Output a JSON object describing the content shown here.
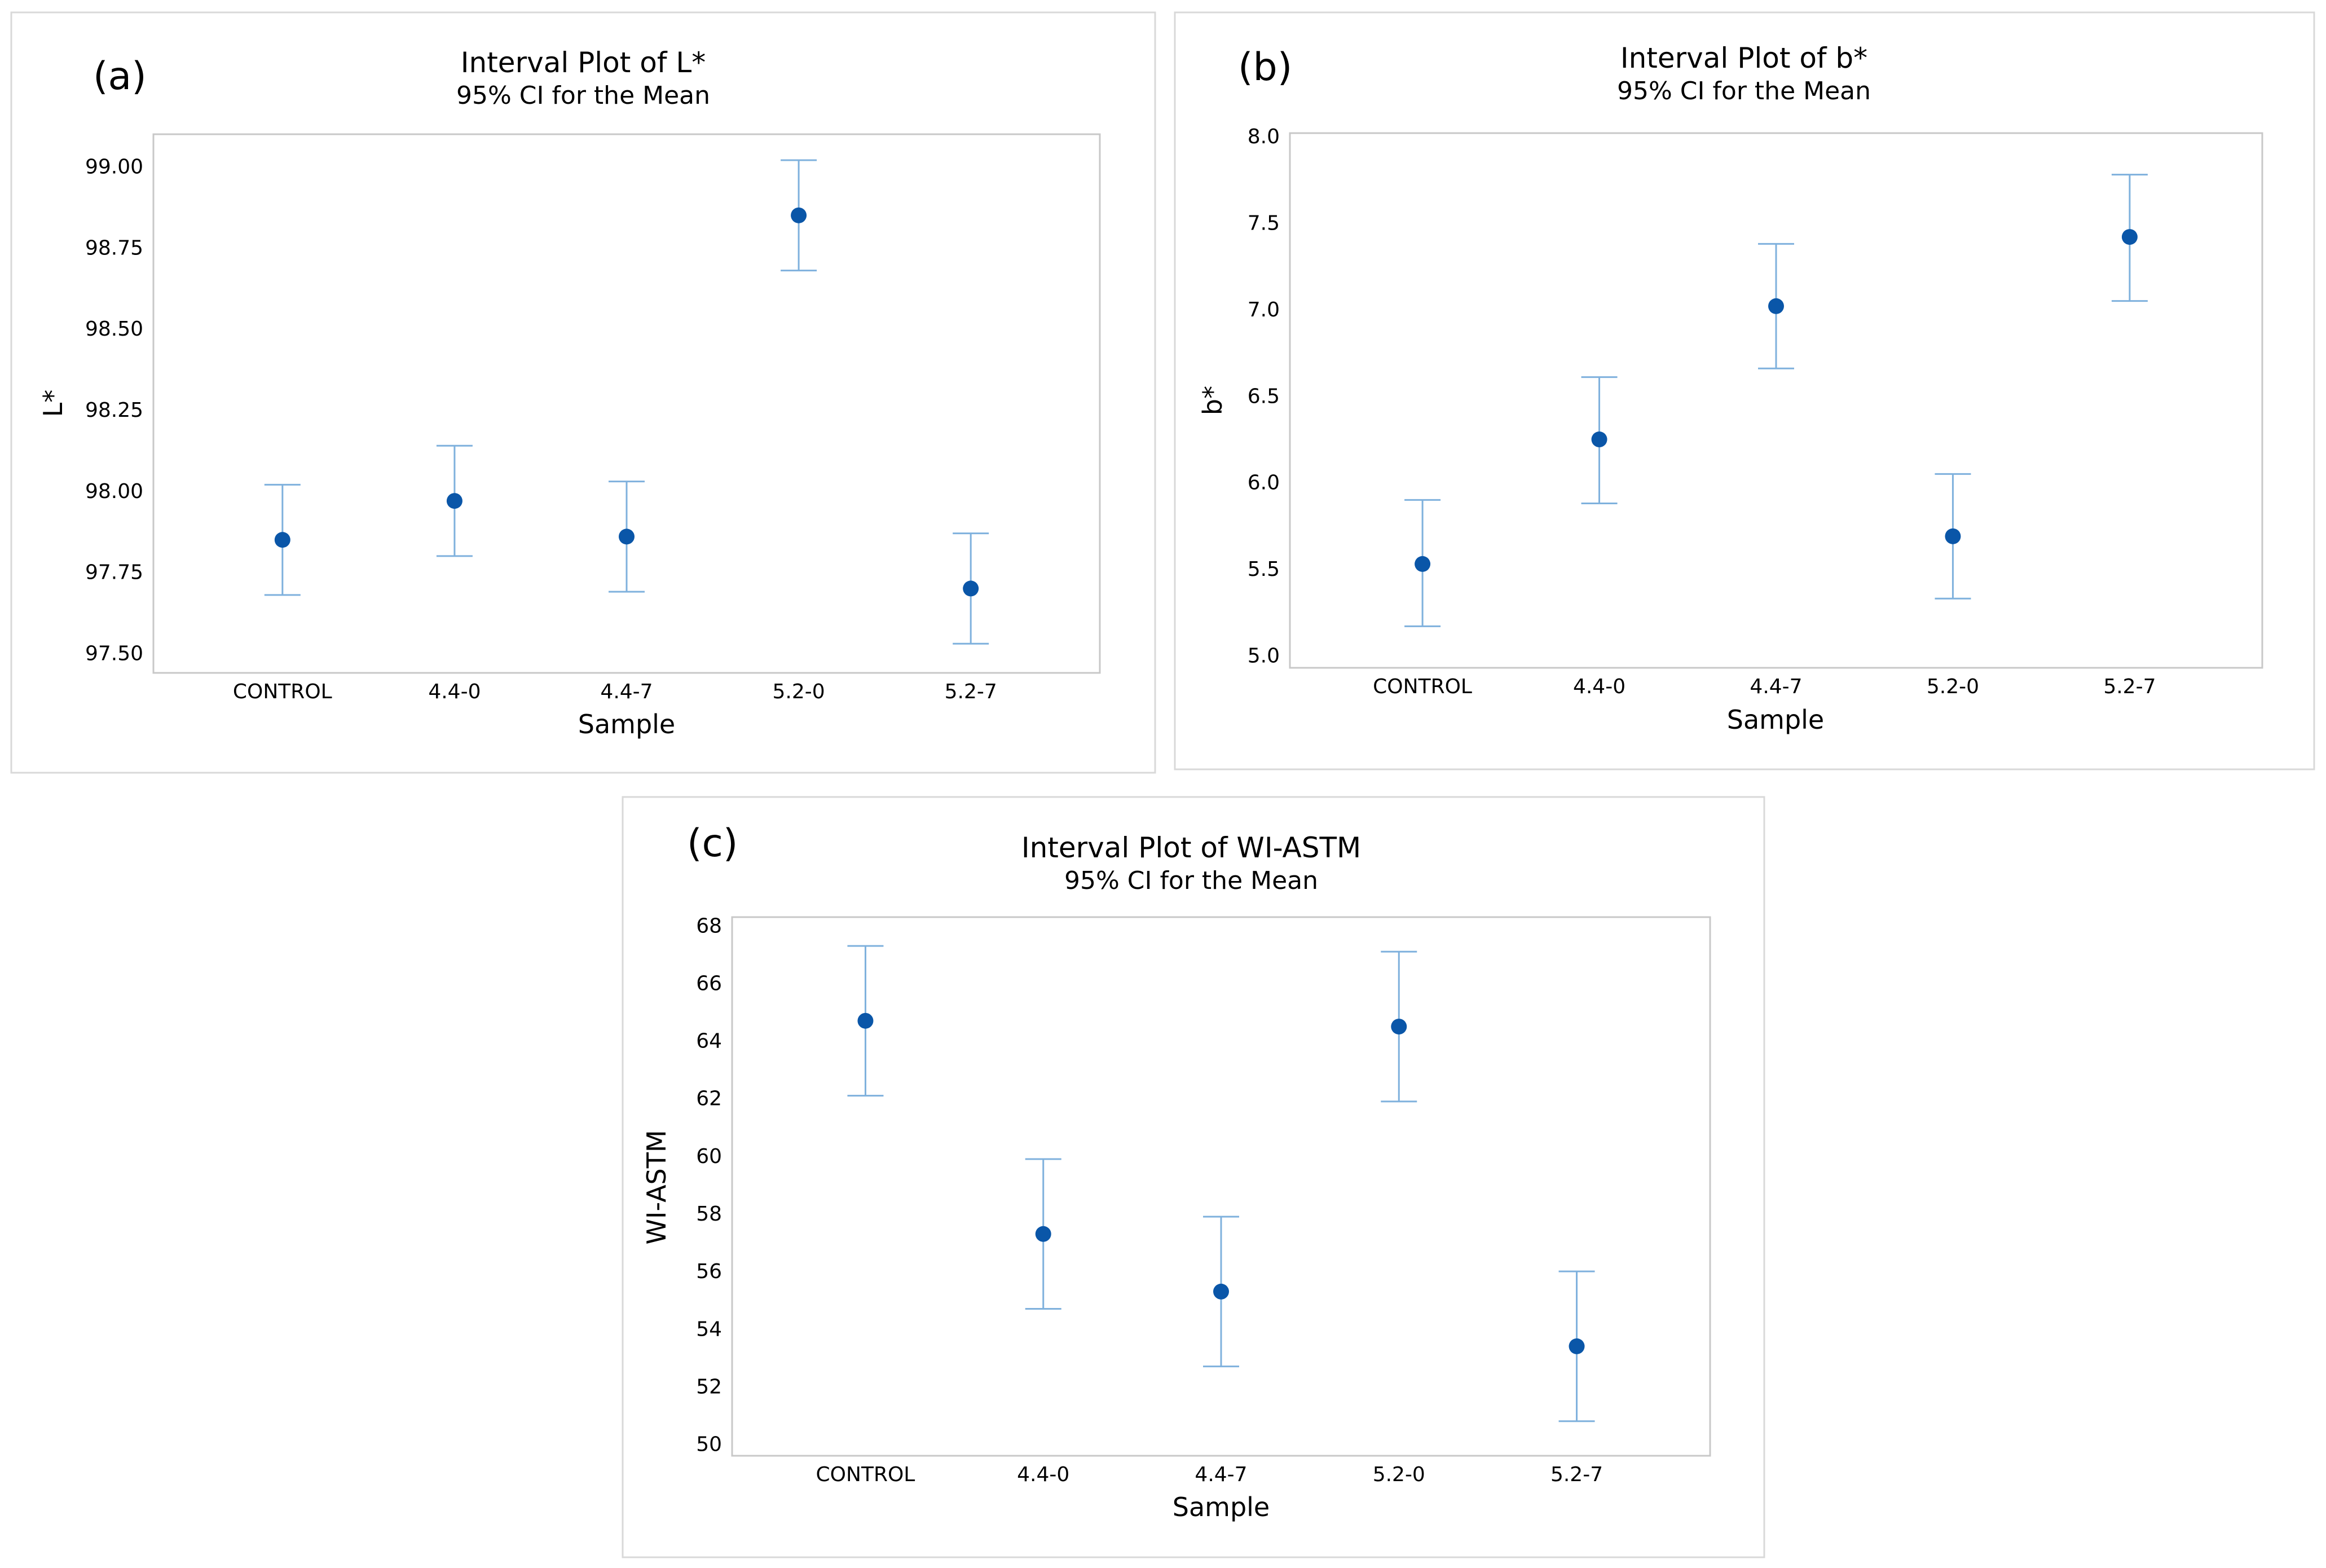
{
  "chart_data": [
    {
      "panel": "(a)",
      "type": "interval",
      "title": "Interval Plot of L*",
      "subtitle": "95% CI for the Mean",
      "xlabel": "Sample",
      "ylabel": "L*",
      "categories": [
        "CONTROL",
        "4.4-0",
        "4.4-7",
        "5.2-0",
        "5.2-7"
      ],
      "means": [
        97.85,
        97.97,
        97.86,
        98.85,
        97.7
      ],
      "lower": [
        97.68,
        97.8,
        97.69,
        98.68,
        97.53
      ],
      "upper": [
        98.02,
        98.14,
        98.03,
        99.02,
        97.87
      ],
      "yticks": [
        97.5,
        97.75,
        98.0,
        98.25,
        98.5,
        98.75,
        99.0
      ],
      "ytick_labels": [
        "97.50",
        "97.75",
        "98.00",
        "98.25",
        "98.50",
        "98.75",
        "99.00"
      ],
      "ylim": [
        97.44,
        99.1
      ],
      "colors": {
        "mean": "#0a56a8",
        "interval": "#7fb1dd"
      }
    },
    {
      "panel": "(b)",
      "type": "interval",
      "title": "Interval Plot of b*",
      "subtitle": "95% CI for the Mean",
      "xlabel": "Sample",
      "ylabel": "b*",
      "categories": [
        "CONTROL",
        "4.4-0",
        "4.4-7",
        "5.2-0",
        "5.2-7"
      ],
      "means": [
        5.53,
        6.25,
        7.02,
        5.69,
        7.42
      ],
      "lower": [
        5.17,
        5.88,
        6.66,
        5.33,
        7.05
      ],
      "upper": [
        5.9,
        6.61,
        7.38,
        6.05,
        7.78
      ],
      "yticks": [
        5.0,
        5.5,
        6.0,
        6.5,
        7.0,
        7.5,
        8.0
      ],
      "ytick_labels": [
        "5.0",
        "5.5",
        "6.0",
        "6.5",
        "7.0",
        "7.5",
        "8.0"
      ],
      "ylim": [
        4.93,
        8.02
      ],
      "colors": {
        "mean": "#0a56a8",
        "interval": "#7fb1dd"
      }
    },
    {
      "panel": "(c)",
      "type": "interval",
      "title": "Interval Plot of WI-ASTM",
      "subtitle": "95% CI for the Mean",
      "xlabel": "Sample",
      "ylabel": "WI-ASTM",
      "categories": [
        "CONTROL",
        "4.4-0",
        "4.4-7",
        "5.2-0",
        "5.2-7"
      ],
      "means": [
        64.7,
        57.3,
        55.3,
        64.5,
        53.4
      ],
      "lower": [
        62.1,
        54.7,
        52.7,
        61.9,
        50.8
      ],
      "upper": [
        67.3,
        59.9,
        57.9,
        67.1,
        56.0
      ],
      "yticks": [
        50,
        52,
        54,
        56,
        58,
        60,
        62,
        64,
        66,
        68
      ],
      "ytick_labels": [
        "50",
        "52",
        "54",
        "56",
        "58",
        "60",
        "62",
        "64",
        "66",
        "68"
      ],
      "ylim": [
        49.6,
        68.3
      ],
      "colors": {
        "mean": "#0a56a8",
        "interval": "#7fb1dd"
      }
    }
  ]
}
